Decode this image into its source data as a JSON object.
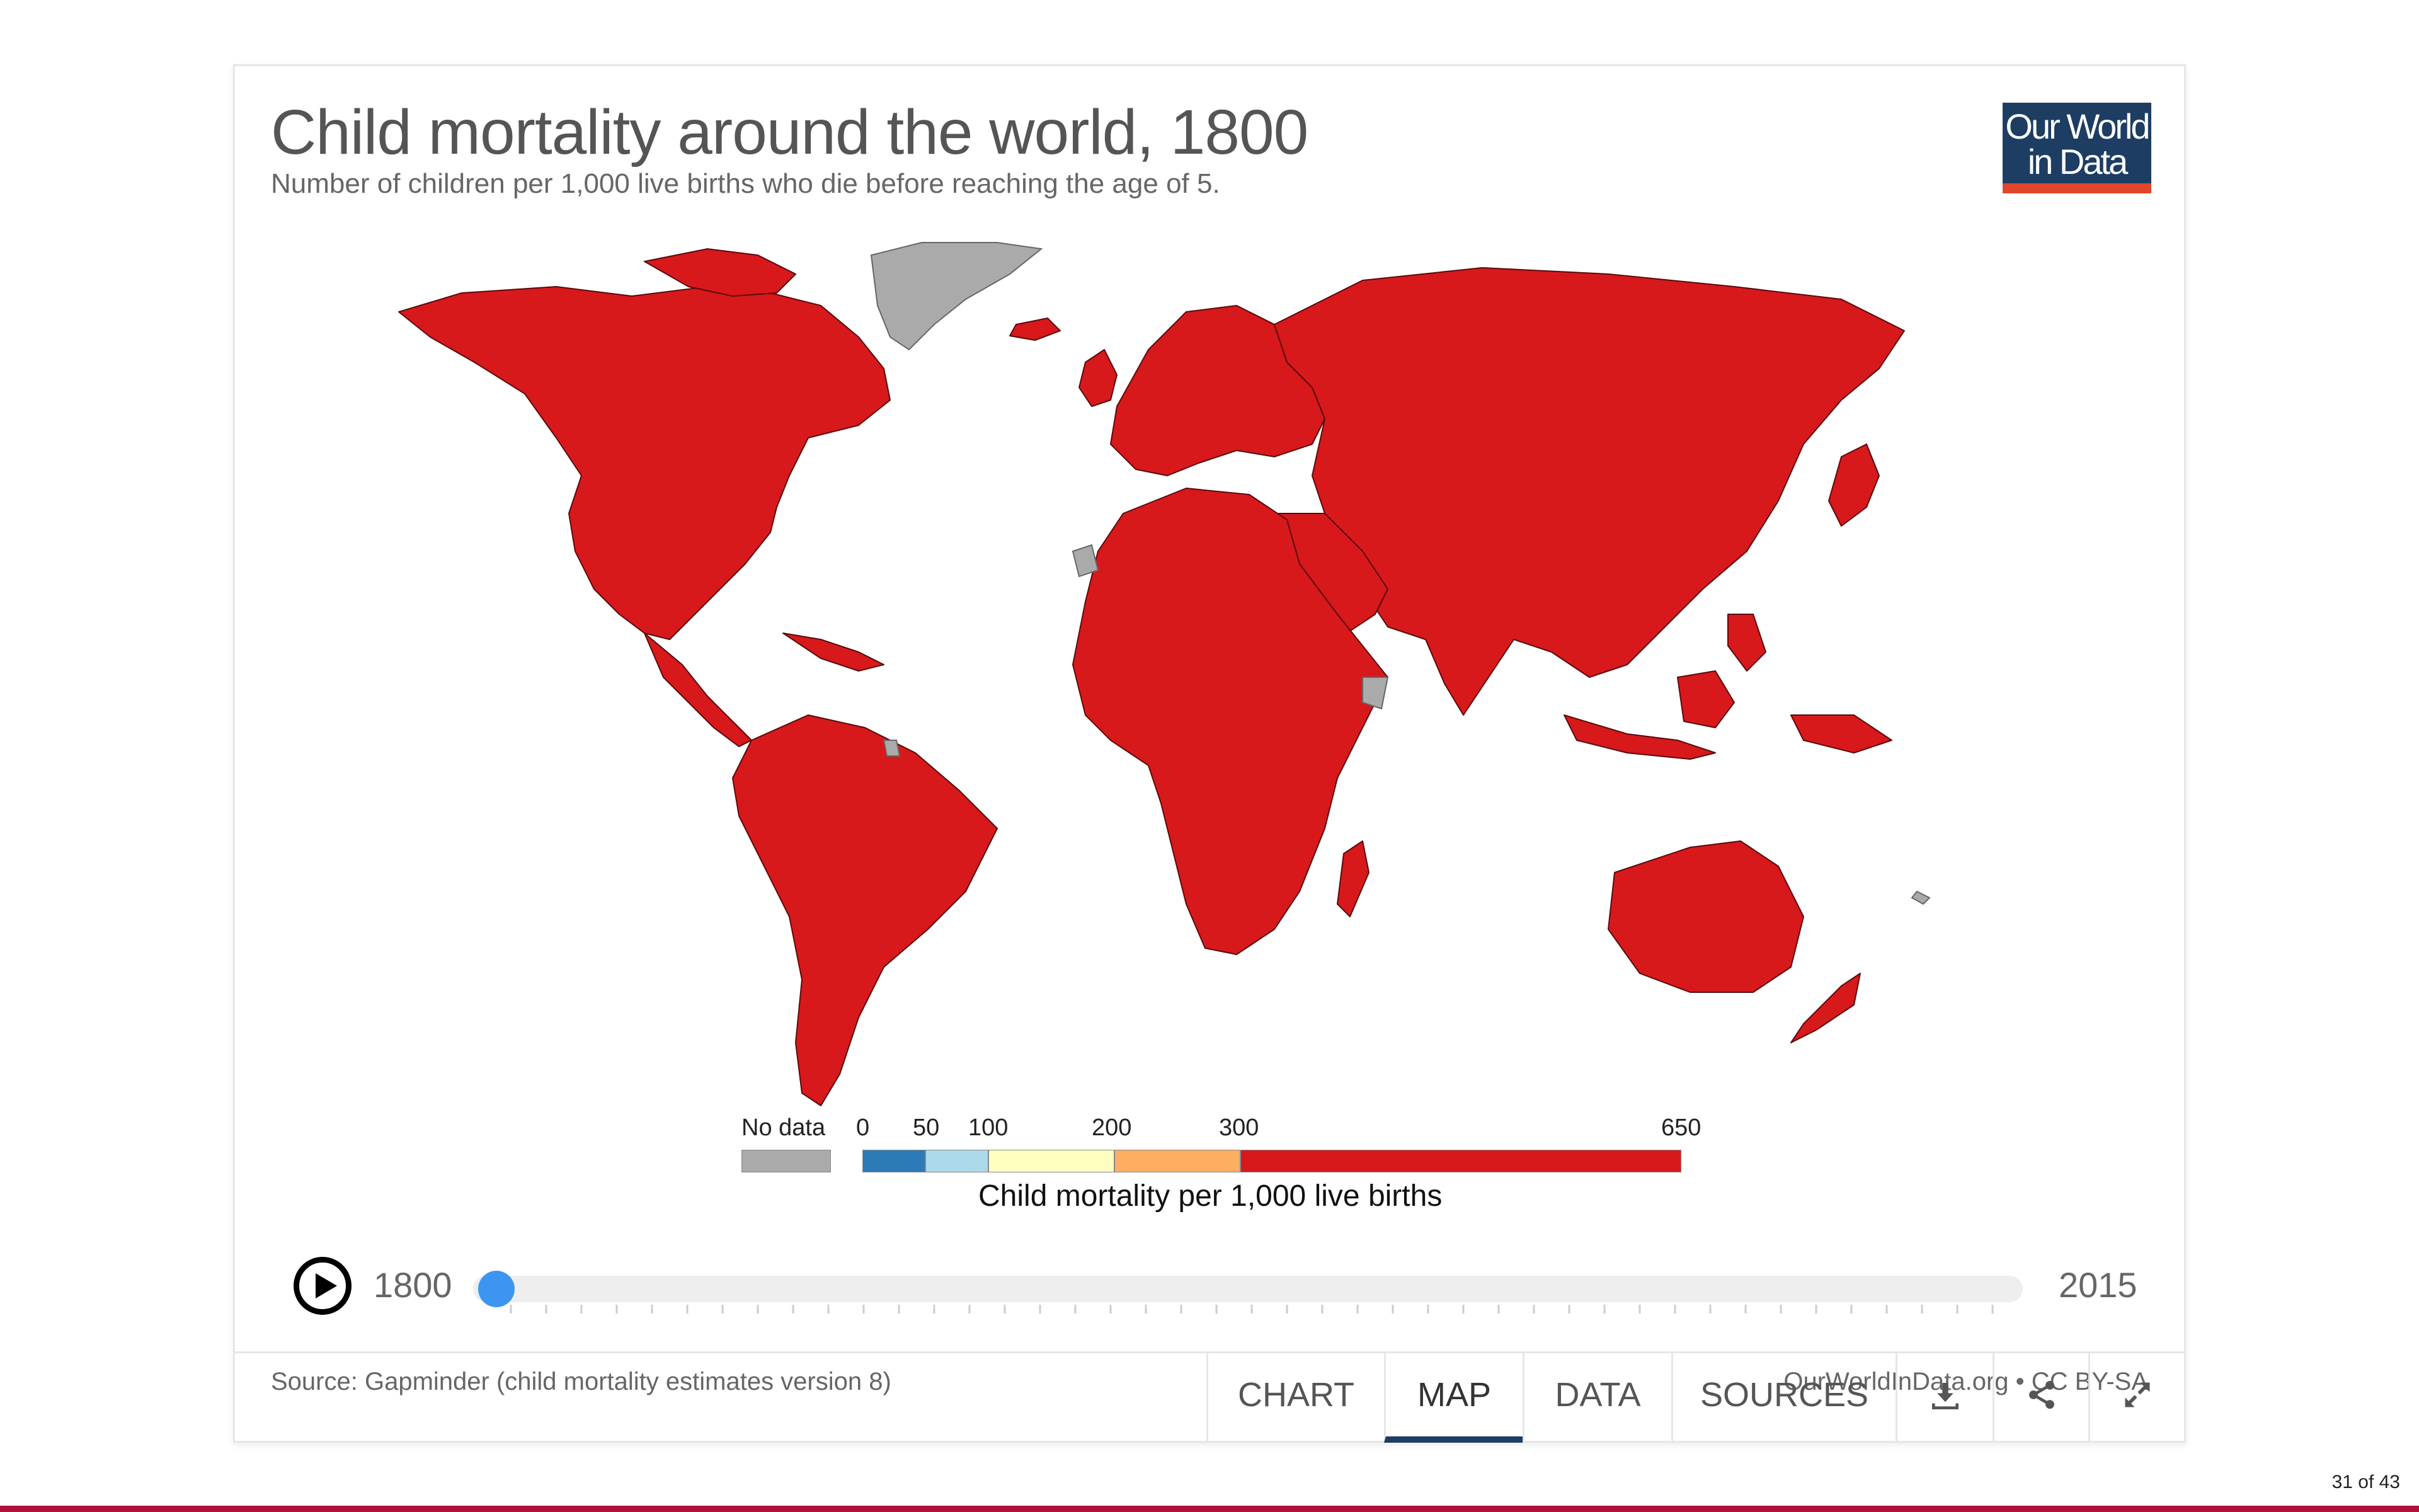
{
  "header": {
    "title": "Child mortality around the world, 1800",
    "subtitle": "Number of children per 1,000 live births who die before reaching the age of 5.",
    "logo_line1": "Our World",
    "logo_line2": "in Data"
  },
  "map": {
    "default_fill": "#d7191c",
    "no_data_fill": "#aaaaaa",
    "border_color": "#5a0a0c",
    "no_data_regions": [
      "Greenland",
      "Western Sahara",
      "Somalia",
      "French Guiana",
      "New Caledonia"
    ]
  },
  "legend": {
    "no_data_label": "No data",
    "no_data_color": "#aaaaaa",
    "tick_labels": [
      "0",
      "50",
      "100",
      "200",
      "300",
      "650"
    ],
    "bins": [
      {
        "from": 0,
        "to": 50,
        "color": "#2c7bb6"
      },
      {
        "from": 50,
        "to": 100,
        "color": "#abd9e9"
      },
      {
        "from": 100,
        "to": 200,
        "color": "#ffffbf"
      },
      {
        "from": 200,
        "to": 300,
        "color": "#fdae61"
      },
      {
        "from": 300,
        "to": 650,
        "color": "#d7191c"
      }
    ],
    "caption": "Child mortality per 1,000 live births"
  },
  "timeline": {
    "start_year": "1800",
    "end_year": "2015",
    "current_year": 1800,
    "slider_color": "#3e95f1"
  },
  "footer": {
    "source": "Source: Gapminder (child mortality estimates version 8)",
    "license": "OurWorldInData.org • CC BY-SA",
    "tabs": [
      {
        "label": "CHART",
        "active": false
      },
      {
        "label": "MAP",
        "active": true
      },
      {
        "label": "DATA",
        "active": false
      },
      {
        "label": "SOURCES",
        "active": false
      }
    ],
    "icons": [
      "download-icon",
      "share-icon",
      "expand-icon"
    ],
    "accent": "#1d3d63"
  },
  "page": {
    "indicator": "31 of 43",
    "bar_color": "#b0123c"
  }
}
